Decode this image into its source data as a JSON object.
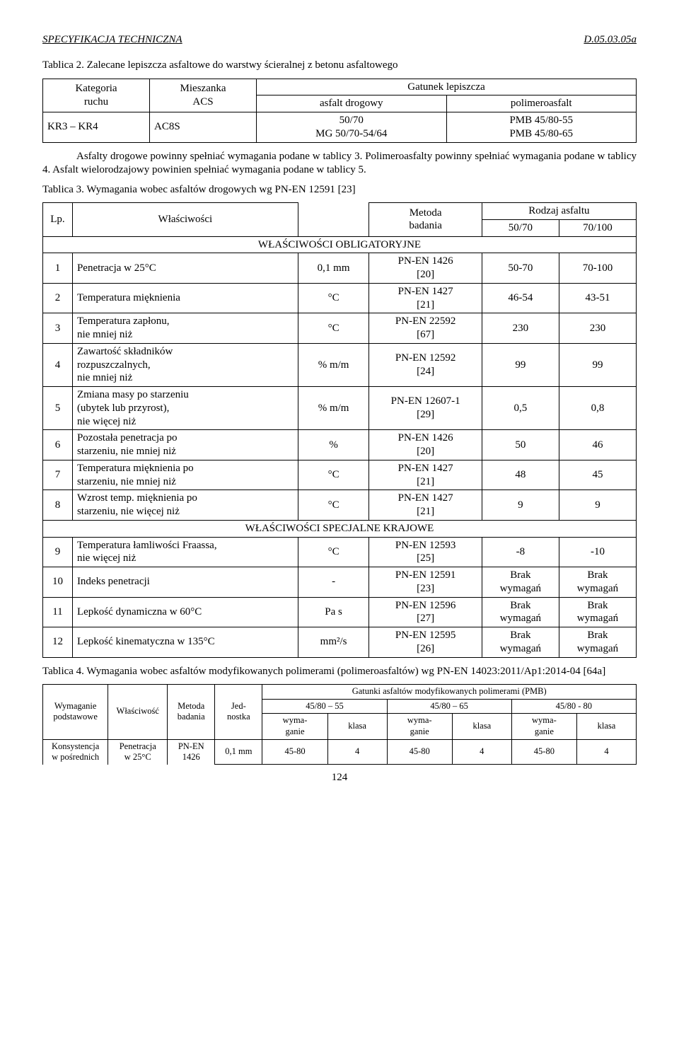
{
  "header": {
    "left": "SPECYFIKACJA TECHNICZNA",
    "right": "D.05.03.05a"
  },
  "intro": {
    "t2_caption": "Tablica 2. Zalecane  lepiszcza asfaltowe do warstwy ścieralnej z betonu asfaltowego",
    "para1": "Asfalty drogowe powinny spełniać wymagania podane w tablicy 3.  Polimeroasfalty  powinny spełniać wymagania podane  w tablicy 4. Asfalt wielorodzajowy powinien spełniać wymagania podane w tablicy 5.",
    "t3_caption": "Tablica 3. Wymagania wobec asfaltów drogowych wg PN-EN 12591 [23]",
    "t4_caption": "Tablica 4. Wymagania wobec asfaltów modyfikowanych polimerami (polimeroasfaltów) wg PN-EN 14023:2011/Ap1:2014-04 [64a]"
  },
  "t2": {
    "h_kat": "Kategoria\nruchu",
    "h_mix": "Mieszanka\nACS",
    "h_gat": "Gatunek lepiszcza",
    "h_ad": "asfalt drogowy",
    "h_pa": "polimeroasfalt",
    "r1_c1": "KR3 – KR4",
    "r1_c2": "AC8S",
    "r1_c3": "50/70\nMG 50/70-54/64",
    "r1_c4": "PMB 45/80-55\nPMB 45/80-65"
  },
  "t3": {
    "h_lp": "Lp.",
    "h_prop": "Właściwości",
    "h_meth": "Metoda\nbadania",
    "h_rodz": "Rodzaj asfaltu",
    "h_5070": "50/70",
    "h_70100": "70/100",
    "sec_oblig": "WŁAŚCIWOŚCI   OBLIGATORYJNE",
    "sec_spec": "WŁAŚCIWOŚCI   SPECJALNE   KRAJOWE",
    "rows": [
      {
        "lp": "1",
        "prop": "Penetracja w 25°C",
        "unit": "0,1 mm",
        "meth": "PN-EN 1426\n[20]",
        "a": "50-70",
        "b": "70-100"
      },
      {
        "lp": "2",
        "prop": "Temperatura mięknienia",
        "unit": "°C",
        "meth": "PN-EN 1427\n[21]",
        "a": "46-54",
        "b": "43-51"
      },
      {
        "lp": "3",
        "prop": "Temperatura zapłonu,\nnie mniej niż",
        "unit": "°C",
        "meth": "PN-EN 22592\n[67]",
        "a": "230",
        "b": "230"
      },
      {
        "lp": "4",
        "prop": "Zawartość składników\nrozpuszczalnych,\nnie mniej niż",
        "unit": "% m/m",
        "meth": "PN-EN 12592\n[24]",
        "a": "99",
        "b": "99"
      },
      {
        "lp": "5",
        "prop": "Zmiana masy po starzeniu\n(ubytek lub przyrost),\nnie więcej niż",
        "unit": "% m/m",
        "meth": "PN-EN 12607-1\n[29]",
        "a": "0,5",
        "b": "0,8"
      },
      {
        "lp": "6",
        "prop": "Pozostała penetracja po\nstarzeniu, nie mniej niż",
        "unit": "%",
        "meth": "PN-EN 1426\n[20]",
        "a": "50",
        "b": "46"
      },
      {
        "lp": "7",
        "prop": "Temperatura mięknienia po\nstarzeniu, nie mniej niż",
        "unit": "°C",
        "meth": "PN-EN 1427\n[21]",
        "a": "48",
        "b": "45"
      },
      {
        "lp": "8",
        "prop": "Wzrost temp. mięknienia po\nstarzeniu, nie więcej niż",
        "unit": "°C",
        "meth": "PN-EN 1427\n[21]",
        "a": "9",
        "b": "9"
      },
      {
        "lp": "9",
        "prop": "Temperatura łamliwości Fraassa,\nnie więcej niż",
        "unit": "°C",
        "meth": "PN-EN 12593\n[25]",
        "a": "-8",
        "b": "-10"
      },
      {
        "lp": "10",
        "prop": "Indeks penetracji",
        "unit": "-",
        "meth": "PN-EN 12591\n[23]",
        "a": "Brak\nwymagań",
        "b": "Brak\nwymagań"
      },
      {
        "lp": "11",
        "prop": "Lepkość dynamiczna w 60°C",
        "unit": "Pa s",
        "meth": "PN-EN 12596\n[27]",
        "a": "Brak\nwymagań",
        "b": "Brak\nwymagań"
      },
      {
        "lp": "12",
        "prop": "Lepkość kinematyczna w 135°C",
        "unit": "mm²/s",
        "meth": "PN-EN 12595\n[26]",
        "a": "Brak\nwymagań",
        "b": "Brak\nwymagań"
      }
    ]
  },
  "t4": {
    "h_wym": "Wymaganie\npodstawowe",
    "h_wl": "Właściwość",
    "h_met": "Metoda\nbadania",
    "h_jed": "Jed-\nnostka",
    "h_gat": "Gatunki asfaltów modyfikowanych polimerami (PMB)",
    "h_g1": "45/80 – 55",
    "h_g2": "45/80 – 65",
    "h_g3": "45/80 - 80",
    "h_wymaganie": "wyma-\nganie",
    "h_klasa": "klasa",
    "r1_c1": "Konsystencja\nw pośrednich",
    "r1_c2": "Penetracja\nw 25°C",
    "r1_c3": "PN-EN\n1426",
    "r1_c4": "0,1 mm",
    "r1_v": "45-80",
    "r1_k": "4"
  },
  "page": "124"
}
